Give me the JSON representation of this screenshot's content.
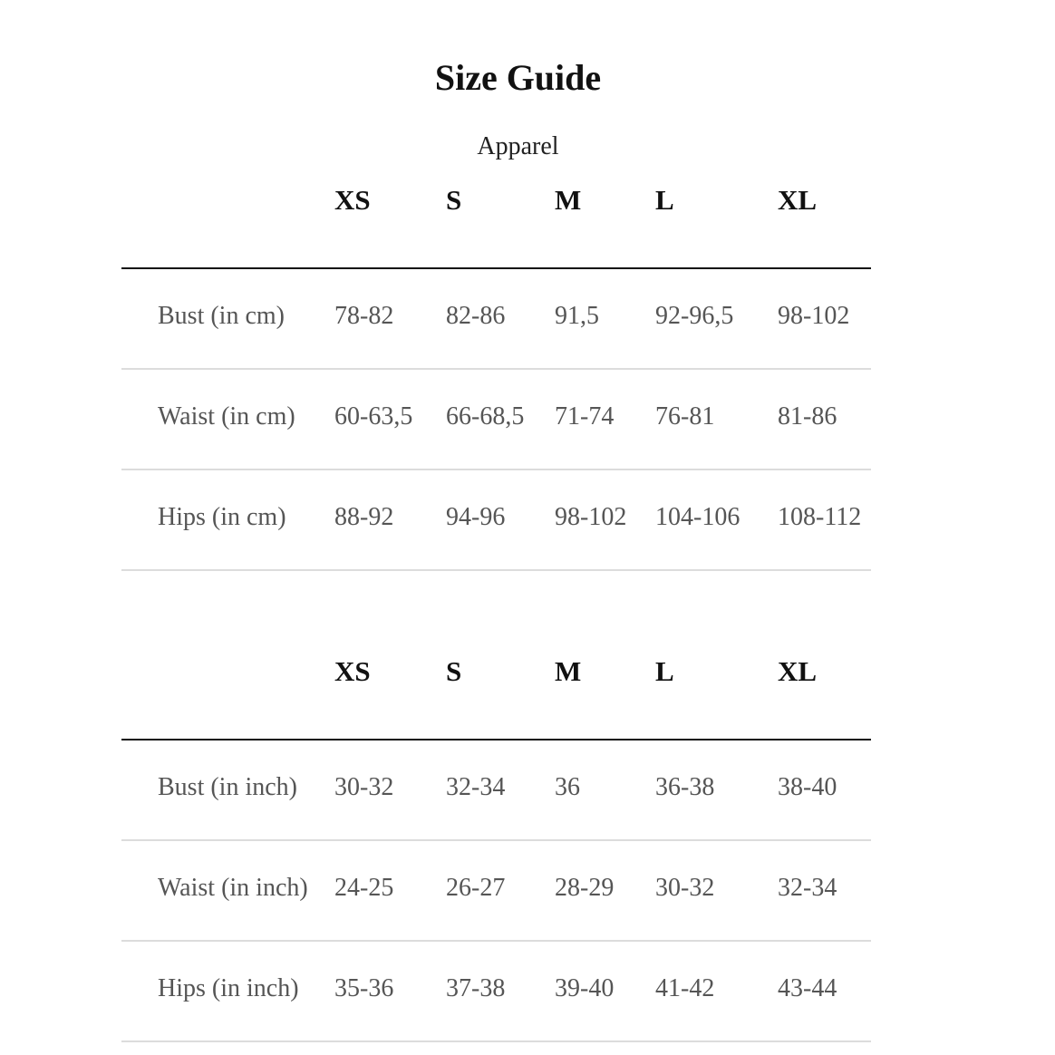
{
  "title": "Size Guide",
  "subtitle": "Apparel",
  "tables": [
    {
      "headers": [
        "XS",
        "S",
        "M",
        "L",
        "XL"
      ],
      "rows": [
        {
          "label": "Bust (in cm)",
          "values": [
            "78-82",
            "82-86",
            "91,5",
            "92-96,5",
            "98-102"
          ]
        },
        {
          "label": "Waist (in cm)",
          "values": [
            "60-63,5",
            "66-68,5",
            "71-74",
            "76-81",
            "81-86"
          ]
        },
        {
          "label": "Hips (in cm)",
          "values": [
            "88-92",
            "94-96",
            "98-102",
            "104-106",
            "108-112"
          ]
        }
      ]
    },
    {
      "headers": [
        "XS",
        "S",
        "M",
        "L",
        "XL"
      ],
      "rows": [
        {
          "label": "Bust (in inch)",
          "values": [
            "30-32",
            "32-34",
            "36",
            "36-38",
            "38-40"
          ]
        },
        {
          "label": "Waist (in inch)",
          "values": [
            "24-25",
            "26-27",
            "28-29",
            "30-32",
            "32-34"
          ]
        },
        {
          "label": "Hips (in inch)",
          "values": [
            "35-36",
            "37-38",
            "39-40",
            "41-42",
            "43-44"
          ]
        }
      ]
    }
  ]
}
